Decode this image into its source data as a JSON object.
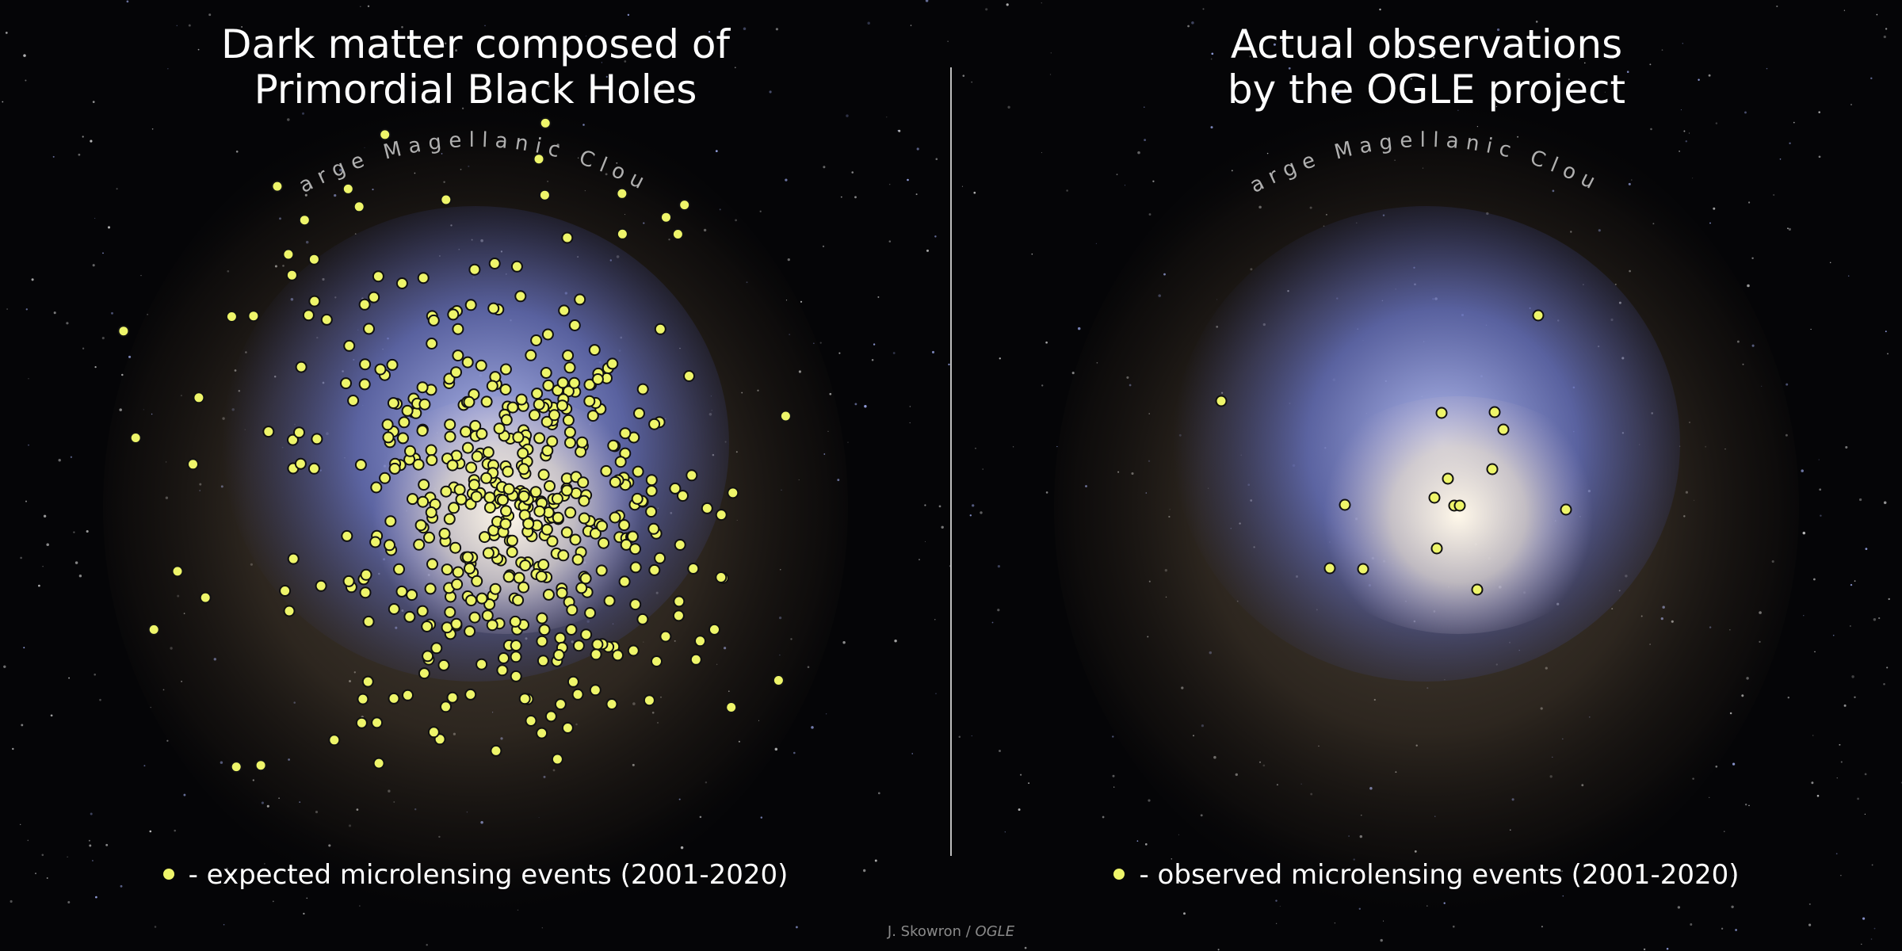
{
  "left_panel": {
    "title_lines": [
      "Dark matter composed of",
      "Primordial Black Holes"
    ],
    "arc_label": "Large Magellanic Cloud",
    "legend_text": "- expected microlensing events (2001-2020)"
  },
  "right_panel": {
    "title_lines": [
      "Actual observations",
      "by the OGLE project"
    ],
    "arc_label": "Large Magellanic Cloud",
    "legend_text": "- observed microlensing events (2001-2020)"
  },
  "credit": {
    "author": "J. Skowron /",
    "org": "OGLE"
  },
  "colors": {
    "background": "#050507",
    "event_fill": "#eef56a",
    "event_stroke": "#111111",
    "galaxy_blue": "#6f7fd8",
    "galaxy_core": "#fff6e6",
    "halo": "#6b5a44",
    "divider": "#bdbdbd"
  },
  "counts": {
    "expected_events": 520,
    "observed_events": 17
  }
}
